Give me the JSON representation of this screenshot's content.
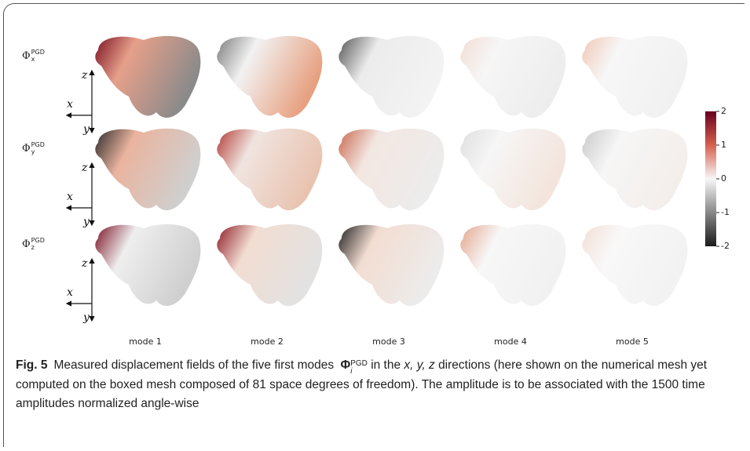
{
  "figure": {
    "rows": [
      {
        "symbol": "Φ",
        "sub": "x",
        "sup": "PGD",
        "axes": {
          "z": "z",
          "x": "x",
          "y": "y"
        }
      },
      {
        "symbol": "Φ",
        "sub": "y",
        "sup": "PGD",
        "axes": {
          "z": "z",
          "x": "x",
          "y": "y"
        }
      },
      {
        "symbol": "Φ",
        "sub": "z",
        "sup": "PGD",
        "axes": {
          "z": "z",
          "x": "x",
          "y": "y"
        }
      }
    ],
    "modes": [
      "mode 1",
      "mode 2",
      "mode 3",
      "mode 4",
      "mode 5"
    ],
    "colorbar": {
      "lim": [
        -2,
        2
      ],
      "ticks": [
        2,
        1,
        0,
        -1,
        -2
      ]
    }
  },
  "caption": {
    "label": "Fig. 5",
    "text1": "Measured displacement fields of the five first modes",
    "symbol": "Φ",
    "symbol_sub": "i",
    "symbol_sup": "PGD",
    "text2": "in the",
    "directions": "x, y, z",
    "text3": "directions (here shown on the numerical mesh yet computed on the boxed mesh composed of 81 space degrees of freedom). The amplitude is to be associated with the 1500 time amplitudes normalized angle-wise"
  }
}
